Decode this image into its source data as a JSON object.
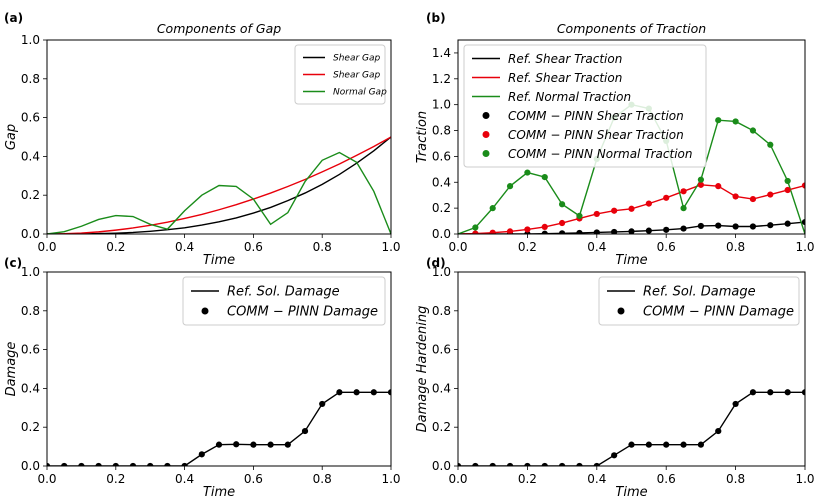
{
  "chart_data": [
    {
      "panel": "(a)",
      "type": "line",
      "title": "Components of Gap",
      "xlabel": "Time",
      "ylabel": "Gap",
      "xlim": [
        0,
        1
      ],
      "ylim": [
        0,
        1
      ],
      "xticks": [
        "0.0",
        "0.2",
        "0.4",
        "0.6",
        "0.8",
        "1.0"
      ],
      "yticks": [
        "0.0",
        "0.2",
        "0.4",
        "0.6",
        "0.8",
        "1.0"
      ],
      "legend_position": "top-right",
      "series": [
        {
          "name": "Shear Gap",
          "style": "line",
          "color": "#000000",
          "x": [
            0,
            0.05,
            0.1,
            0.15,
            0.2,
            0.25,
            0.3,
            0.35,
            0.4,
            0.45,
            0.5,
            0.55,
            0.6,
            0.65,
            0.7,
            0.75,
            0.8,
            0.85,
            0.9,
            0.95,
            1.0
          ],
          "y": [
            0,
            0.0001,
            0.0005,
            0.002,
            0.004,
            0.008,
            0.014,
            0.022,
            0.032,
            0.046,
            0.063,
            0.083,
            0.108,
            0.137,
            0.172,
            0.211,
            0.256,
            0.307,
            0.365,
            0.429,
            0.5
          ]
        },
        {
          "name": "Shear Gap",
          "style": "line",
          "color": "#e8000b",
          "x": [
            0,
            0.05,
            0.1,
            0.15,
            0.2,
            0.25,
            0.3,
            0.35,
            0.4,
            0.45,
            0.5,
            0.55,
            0.6,
            0.65,
            0.7,
            0.75,
            0.8,
            0.85,
            0.9,
            0.95,
            1.0
          ],
          "y": [
            0,
            0.0013,
            0.005,
            0.011,
            0.02,
            0.031,
            0.045,
            0.061,
            0.08,
            0.101,
            0.125,
            0.151,
            0.18,
            0.211,
            0.245,
            0.281,
            0.32,
            0.361,
            0.405,
            0.451,
            0.5
          ]
        },
        {
          "name": "Normal Gap",
          "style": "line",
          "color": "#1a8c1a",
          "x": [
            0,
            0.05,
            0.1,
            0.15,
            0.2,
            0.25,
            0.3,
            0.35,
            0.4,
            0.45,
            0.5,
            0.55,
            0.6,
            0.65,
            0.7,
            0.75,
            0.8,
            0.85,
            0.9,
            0.95,
            1.0
          ],
          "y": [
            0,
            0.012,
            0.04,
            0.075,
            0.095,
            0.09,
            0.05,
            0.025,
            0.12,
            0.2,
            0.25,
            0.245,
            0.18,
            0.05,
            0.11,
            0.27,
            0.38,
            0.42,
            0.37,
            0.22,
            0
          ]
        }
      ]
    },
    {
      "panel": "(b)",
      "type": "line",
      "title": "Components of Traction",
      "xlabel": "Time",
      "ylabel": "Traction",
      "xlim": [
        0,
        1
      ],
      "ylim": [
        0,
        1.5
      ],
      "xticks": [
        "0.0",
        "0.2",
        "0.4",
        "0.6",
        "0.8",
        "1.0"
      ],
      "yticks": [
        "0.0",
        "0.2",
        "0.4",
        "0.6",
        "0.8",
        "1.0",
        "1.2",
        "1.4"
      ],
      "legend_position": "top-left",
      "series": [
        {
          "name": "Ref.  Shear Traction",
          "style": "line",
          "color": "#000000",
          "x": [
            0,
            0.05,
            0.1,
            0.15,
            0.2,
            0.25,
            0.3,
            0.35,
            0.4,
            0.45,
            0.5,
            0.55,
            0.6,
            0.65,
            0.7,
            0.75,
            0.8,
            0.85,
            0.9,
            0.95,
            1.0
          ],
          "y": [
            0,
            0,
            0,
            0,
            0,
            0.002,
            0.005,
            0.008,
            0.012,
            0.016,
            0.02,
            0.026,
            0.032,
            0.042,
            0.062,
            0.065,
            0.058,
            0.058,
            0.068,
            0.08,
            0.092
          ]
        },
        {
          "name": "Ref.  Shear Traction",
          "style": "line",
          "color": "#e8000b",
          "x": [
            0,
            0.05,
            0.1,
            0.15,
            0.2,
            0.25,
            0.3,
            0.35,
            0.4,
            0.45,
            0.5,
            0.55,
            0.6,
            0.65,
            0.7,
            0.75,
            0.8,
            0.85,
            0.9,
            0.95,
            1.0
          ],
          "y": [
            0,
            0.003,
            0.01,
            0.02,
            0.035,
            0.055,
            0.085,
            0.12,
            0.155,
            0.18,
            0.195,
            0.235,
            0.28,
            0.33,
            0.38,
            0.37,
            0.29,
            0.27,
            0.305,
            0.34,
            0.375
          ]
        },
        {
          "name": "Ref.  Normal Traction",
          "style": "line",
          "color": "#1a8c1a",
          "x": [
            0,
            0.05,
            0.1,
            0.15,
            0.2,
            0.25,
            0.3,
            0.35,
            0.4,
            0.45,
            0.5,
            0.55,
            0.6,
            0.65,
            0.7,
            0.75,
            0.8,
            0.85,
            0.9,
            0.95,
            1.0
          ],
          "y": [
            0,
            0.05,
            0.2,
            0.37,
            0.475,
            0.44,
            0.23,
            0.14,
            0.58,
            0.9,
            1.0,
            0.97,
            0.72,
            0.2,
            0.42,
            0.88,
            0.87,
            0.8,
            0.69,
            0.41,
            0
          ]
        },
        {
          "name": "COMM − PINN Shear Traction",
          "style": "marker",
          "color": "#000000",
          "x": [
            0.05,
            0.1,
            0.15,
            0.2,
            0.25,
            0.3,
            0.35,
            0.4,
            0.45,
            0.5,
            0.55,
            0.6,
            0.65,
            0.7,
            0.75,
            0.8,
            0.85,
            0.9,
            0.95,
            1.0
          ],
          "y": [
            0,
            0,
            0,
            0,
            0.002,
            0.005,
            0.008,
            0.012,
            0.016,
            0.02,
            0.026,
            0.032,
            0.042,
            0.062,
            0.065,
            0.058,
            0.058,
            0.068,
            0.08,
            0.092
          ]
        },
        {
          "name": "COMM − PINN Shear Traction",
          "style": "marker",
          "color": "#e8000b",
          "x": [
            0.05,
            0.1,
            0.15,
            0.2,
            0.25,
            0.3,
            0.35,
            0.4,
            0.45,
            0.5,
            0.55,
            0.6,
            0.65,
            0.7,
            0.75,
            0.8,
            0.85,
            0.9,
            0.95,
            1.0
          ],
          "y": [
            0.003,
            0.01,
            0.02,
            0.035,
            0.055,
            0.085,
            0.12,
            0.155,
            0.18,
            0.195,
            0.235,
            0.28,
            0.33,
            0.38,
            0.37,
            0.29,
            0.27,
            0.305,
            0.34,
            0.375
          ]
        },
        {
          "name": "COMM − PINN Normal Traction",
          "style": "marker",
          "color": "#1a8c1a",
          "x": [
            0.05,
            0.1,
            0.15,
            0.2,
            0.25,
            0.3,
            0.35,
            0.4,
            0.45,
            0.5,
            0.55,
            0.6,
            0.65,
            0.7,
            0.75,
            0.8,
            0.85,
            0.9,
            0.95
          ],
          "y": [
            0.05,
            0.2,
            0.37,
            0.475,
            0.44,
            0.23,
            0.14,
            0.58,
            0.9,
            1.0,
            0.97,
            0.72,
            0.2,
            0.42,
            0.88,
            0.87,
            0.8,
            0.69,
            0.41
          ]
        }
      ]
    },
    {
      "panel": "(c)",
      "type": "line",
      "title": "",
      "xlabel": "Time",
      "ylabel": "Damage",
      "xlim": [
        0,
        1
      ],
      "ylim": [
        0,
        1
      ],
      "xticks": [
        "0.0",
        "0.2",
        "0.4",
        "0.6",
        "0.8",
        "1.0"
      ],
      "yticks": [
        "0.0",
        "0.2",
        "0.4",
        "0.6",
        "0.8",
        "1.0"
      ],
      "legend_position": "top-right",
      "series": [
        {
          "name": "Ref.  Sol.  Damage",
          "style": "line",
          "color": "#000000",
          "x": [
            0,
            0.05,
            0.1,
            0.15,
            0.2,
            0.25,
            0.3,
            0.35,
            0.4,
            0.45,
            0.5,
            0.55,
            0.6,
            0.65,
            0.7,
            0.75,
            0.8,
            0.85,
            0.9,
            0.95,
            1.0
          ],
          "y": [
            0,
            0,
            0,
            0,
            0,
            0,
            0,
            0,
            0,
            0.06,
            0.11,
            0.112,
            0.11,
            0.11,
            0.11,
            0.18,
            0.32,
            0.38,
            0.38,
            0.38,
            0.38
          ]
        },
        {
          "name": "COMM − PINN Damage",
          "style": "marker",
          "color": "#000000",
          "x": [
            0,
            0.05,
            0.1,
            0.15,
            0.2,
            0.25,
            0.3,
            0.35,
            0.4,
            0.45,
            0.5,
            0.55,
            0.6,
            0.65,
            0.7,
            0.75,
            0.8,
            0.85,
            0.9,
            0.95,
            1.0
          ],
          "y": [
            0,
            0,
            0,
            0,
            0,
            0,
            0,
            0,
            0,
            0.06,
            0.11,
            0.112,
            0.11,
            0.11,
            0.11,
            0.18,
            0.32,
            0.38,
            0.38,
            0.38,
            0.38
          ]
        }
      ]
    },
    {
      "panel": "(d)",
      "type": "line",
      "title": "",
      "xlabel": "Time",
      "ylabel": "Damage Hardening",
      "xlim": [
        0,
        1
      ],
      "ylim": [
        0,
        1
      ],
      "xticks": [
        "0.0",
        "0.2",
        "0.4",
        "0.6",
        "0.8",
        "1.0"
      ],
      "yticks": [
        "0.0",
        "0.2",
        "0.4",
        "0.6",
        "0.8",
        "1.0"
      ],
      "legend_position": "top-right",
      "series": [
        {
          "name": "Ref.  Sol.  Damage",
          "style": "line",
          "color": "#000000",
          "x": [
            0,
            0.05,
            0.1,
            0.15,
            0.2,
            0.25,
            0.3,
            0.35,
            0.4,
            0.45,
            0.5,
            0.55,
            0.6,
            0.65,
            0.7,
            0.75,
            0.8,
            0.85,
            0.9,
            0.95,
            1.0
          ],
          "y": [
            0,
            0,
            0,
            0,
            0,
            0,
            0,
            0,
            0,
            0.055,
            0.11,
            0.11,
            0.11,
            0.11,
            0.11,
            0.18,
            0.32,
            0.38,
            0.38,
            0.38,
            0.38
          ]
        },
        {
          "name": "COMM − PINN Damage",
          "style": "marker",
          "color": "#000000",
          "x": [
            0,
            0.05,
            0.1,
            0.15,
            0.2,
            0.25,
            0.3,
            0.35,
            0.4,
            0.45,
            0.5,
            0.55,
            0.6,
            0.65,
            0.7,
            0.75,
            0.8,
            0.85,
            0.9,
            0.95,
            1.0
          ],
          "y": [
            0,
            0,
            0,
            0,
            0,
            0,
            0,
            0,
            0,
            0.055,
            0.11,
            0.11,
            0.11,
            0.11,
            0.11,
            0.18,
            0.32,
            0.38,
            0.38,
            0.38,
            0.38
          ]
        }
      ]
    }
  ]
}
